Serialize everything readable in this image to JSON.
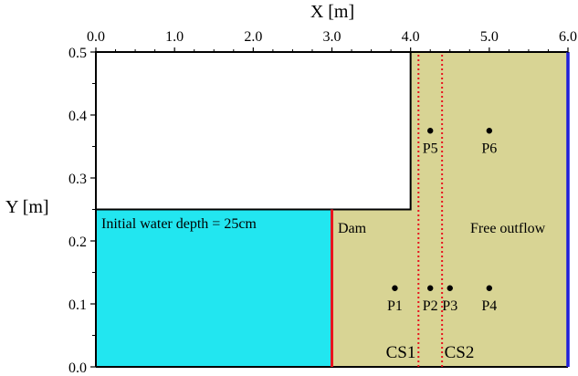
{
  "axes": {
    "x_title": "X [m]",
    "y_title": "Y [m]",
    "x_ticks": [
      {
        "value": 0,
        "label": "0.0"
      },
      {
        "value": 1,
        "label": "1.0"
      },
      {
        "value": 2,
        "label": "2.0"
      },
      {
        "value": 3,
        "label": "3.0"
      },
      {
        "value": 4,
        "label": "4.0"
      },
      {
        "value": 5,
        "label": "5.0"
      },
      {
        "value": 6,
        "label": "6.0"
      }
    ],
    "y_ticks": [
      {
        "value": 0.0,
        "label": "0.0"
      },
      {
        "value": 0.1,
        "label": "0.1"
      },
      {
        "value": 0.2,
        "label": "0.2"
      },
      {
        "value": 0.3,
        "label": "0.3"
      },
      {
        "value": 0.4,
        "label": "0.4"
      },
      {
        "value": 0.5,
        "label": "0.5"
      }
    ],
    "x_range": [
      0,
      6
    ],
    "y_range": [
      0,
      0.5
    ]
  },
  "colors": {
    "water": "#22e6f0",
    "dry_bed": "#d8d494",
    "dam_line": "#e8141e",
    "outflow_line": "#1f1fd8",
    "section_line": "#e8141e",
    "outline": "#000000"
  },
  "regions": {
    "water_label": "Initial water depth = 25cm",
    "dam_label": "Dam",
    "outflow_label": "Free outflow"
  },
  "sections": [
    {
      "label": "CS1",
      "x": 4.1
    },
    {
      "label": "CS2",
      "x": 4.4
    }
  ],
  "probes": [
    {
      "label": "P1",
      "x": 3.8,
      "y": 0.125
    },
    {
      "label": "P2",
      "x": 4.25,
      "y": 0.125
    },
    {
      "label": "P3",
      "x": 4.5,
      "y": 0.125
    },
    {
      "label": "P4",
      "x": 5.0,
      "y": 0.125
    },
    {
      "label": "P5",
      "x": 4.25,
      "y": 0.375
    },
    {
      "label": "P6",
      "x": 5.0,
      "y": 0.375
    }
  ],
  "geometry": {
    "dam_x": 3.0,
    "water_depth": 0.25,
    "channel_wall_x": 4.0,
    "channel_wall_y": 0.25
  }
}
